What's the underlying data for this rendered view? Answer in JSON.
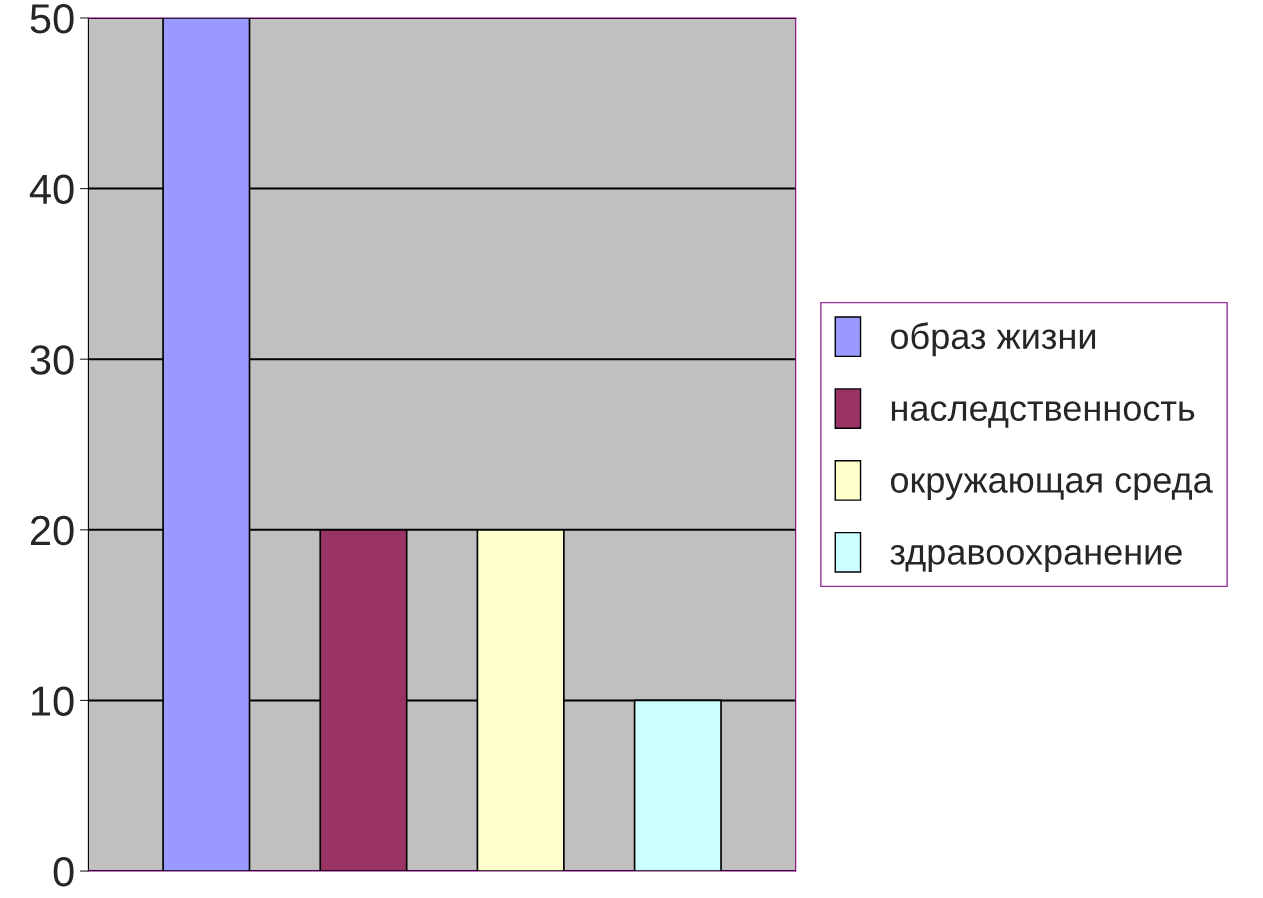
{
  "chart_data": {
    "type": "bar",
    "categories": [
      null
    ],
    "series": [
      {
        "name": "образ жизни",
        "color": "#9999ff",
        "values": [
          50
        ]
      },
      {
        "name": "наследственность",
        "color": "#993366",
        "values": [
          20
        ]
      },
      {
        "name": "окружающая среда",
        "color": "#ffffcc",
        "values": [
          20
        ]
      },
      {
        "name": "здравоохранение",
        "color": "#ccffff",
        "values": [
          10
        ]
      }
    ],
    "ylim": [
      0,
      50
    ],
    "yticks": [
      0,
      10,
      20,
      30,
      40,
      50
    ],
    "grid": "y",
    "legend": "right"
  }
}
